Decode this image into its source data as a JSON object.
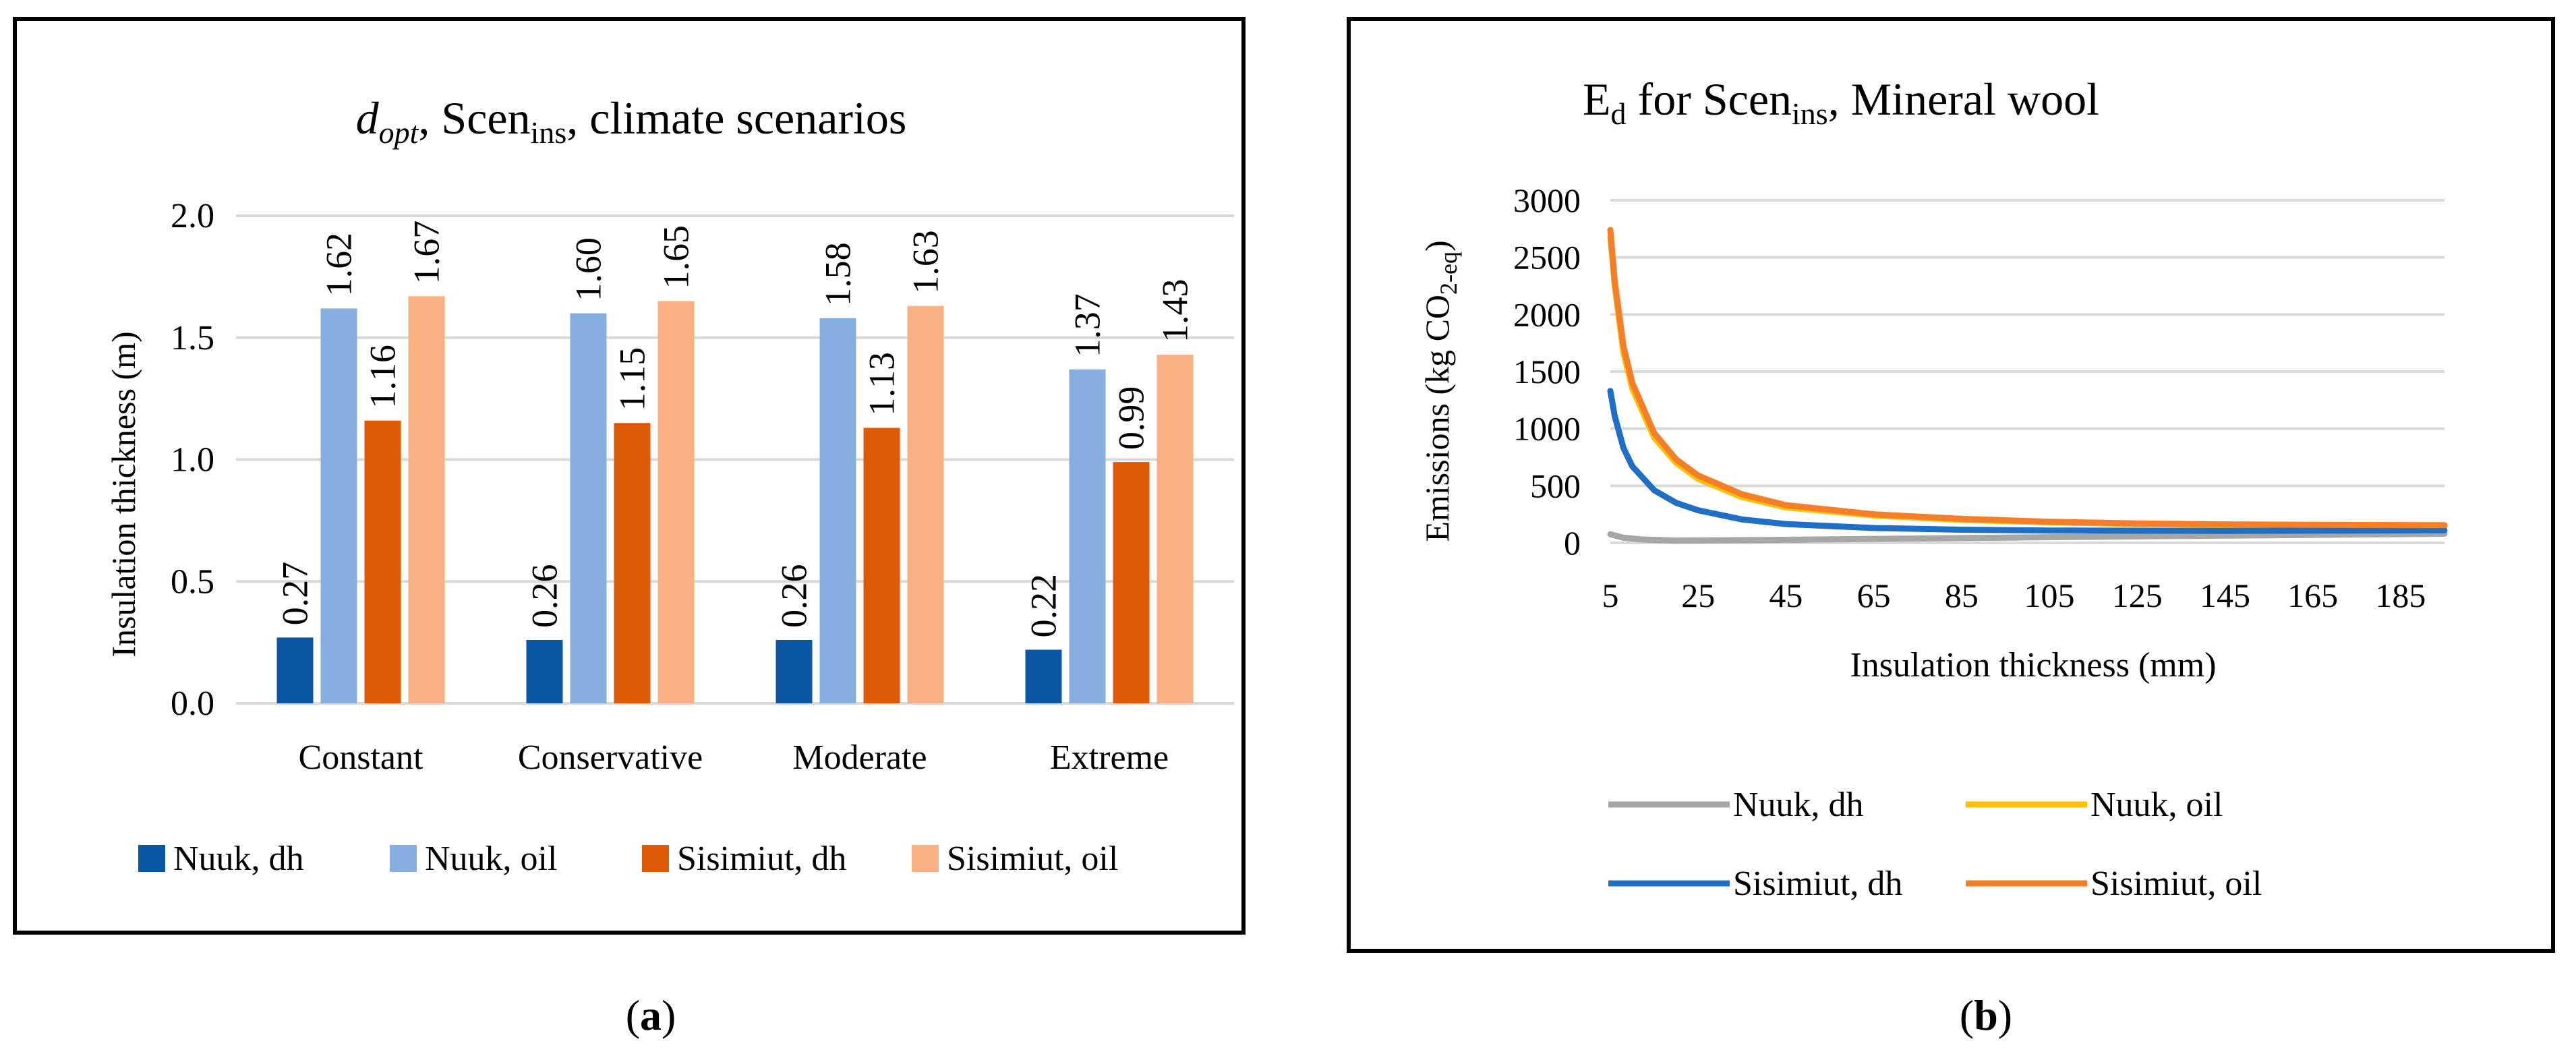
{
  "panel_a": {
    "caption": "a",
    "title": {
      "main": "d",
      "sub": "opt",
      "rest1": ", Scen",
      "sub2": "ins",
      "rest2": ", climate scenarios"
    }
  },
  "panel_b": {
    "caption": "b",
    "title": {
      "main": "E",
      "sub": "d",
      "rest1": " for Scen",
      "sub2": "ins",
      "rest2": ", Mineral wool"
    },
    "ylabel": {
      "pre": "Emissions (kg CO",
      "sub": "2-eq",
      "post": ")"
    }
  },
  "chart_data": [
    {
      "type": "bar",
      "ylabel": "Insulation thickness (m)",
      "categories": [
        "Constant",
        "Conservative",
        "Moderate",
        "Extreme"
      ],
      "ylim": [
        0,
        2.0
      ],
      "yticks": [
        "0.0",
        "0.5",
        "1.0",
        "1.5",
        "2.0"
      ],
      "grid": true,
      "legend_position": "bottom",
      "series": [
        {
          "name": "Nuuk, dh",
          "color": "#0b57a4",
          "values": [
            0.27,
            0.26,
            0.26,
            0.22
          ],
          "labels": [
            "0.27",
            "0.26",
            "0.26",
            "0.22"
          ]
        },
        {
          "name": "Nuuk, oil",
          "color": "#86aedf",
          "values": [
            1.62,
            1.6,
            1.58,
            1.37
          ],
          "labels": [
            "1.62",
            "1.60",
            "1.58",
            "1.37"
          ]
        },
        {
          "name": "Sisimiut, dh",
          "color": "#dd5a07",
          "values": [
            1.16,
            1.15,
            1.13,
            0.99
          ],
          "labels": [
            "1.16",
            "1.15",
            "1.13",
            "0.99"
          ]
        },
        {
          "name": "Sisimiut, oil",
          "color": "#f9b183",
          "values": [
            1.67,
            1.65,
            1.63,
            1.43
          ],
          "labels": [
            "1.67",
            "1.65",
            "1.63",
            "1.43"
          ]
        }
      ]
    },
    {
      "type": "line",
      "xlabel": "Insulation thickness (mm)",
      "xlim": [
        5,
        195
      ],
      "ylim": [
        0,
        3000
      ],
      "xticks": [
        "5",
        "25",
        "45",
        "65",
        "85",
        "105",
        "125",
        "145",
        "165",
        "185"
      ],
      "yticks": [
        "0",
        "500",
        "1000",
        "1500",
        "2000",
        "2500",
        "3000"
      ],
      "grid": true,
      "legend_position": "bottom",
      "series": [
        {
          "name": "Nuuk, dh",
          "color": "#a6a6a6",
          "x": [
            5,
            8,
            12,
            20,
            40,
            80,
            120,
            160,
            195
          ],
          "y": [
            75,
            45,
            30,
            20,
            25,
            40,
            55,
            68,
            80
          ]
        },
        {
          "name": "Nuuk, oil",
          "color": "#ffc000",
          "x": [
            5,
            6,
            8,
            10,
            15,
            20,
            25,
            35,
            45,
            65,
            85,
            105,
            125,
            145,
            165,
            195
          ],
          "y": [
            2680,
            2250,
            1660,
            1350,
            920,
            700,
            560,
            400,
            310,
            240,
            200,
            180,
            165,
            155,
            150,
            148
          ]
        },
        {
          "name": "Sisimiut, dh",
          "color": "#1f6fc7",
          "x": [
            5,
            6,
            8,
            10,
            15,
            20,
            25,
            35,
            45,
            65,
            85,
            105,
            145,
            195
          ],
          "y": [
            1330,
            1110,
            830,
            670,
            460,
            350,
            285,
            205,
            165,
            130,
            115,
            108,
            105,
            110
          ]
        },
        {
          "name": "Sisimiut, oil",
          "color": "#f47f2b",
          "x": [
            5,
            6,
            8,
            10,
            15,
            20,
            25,
            35,
            45,
            65,
            85,
            105,
            125,
            145,
            165,
            195
          ],
          "y": [
            2740,
            2290,
            1720,
            1400,
            960,
            730,
            590,
            425,
            330,
            250,
            210,
            185,
            170,
            162,
            158,
            155
          ]
        }
      ]
    }
  ]
}
